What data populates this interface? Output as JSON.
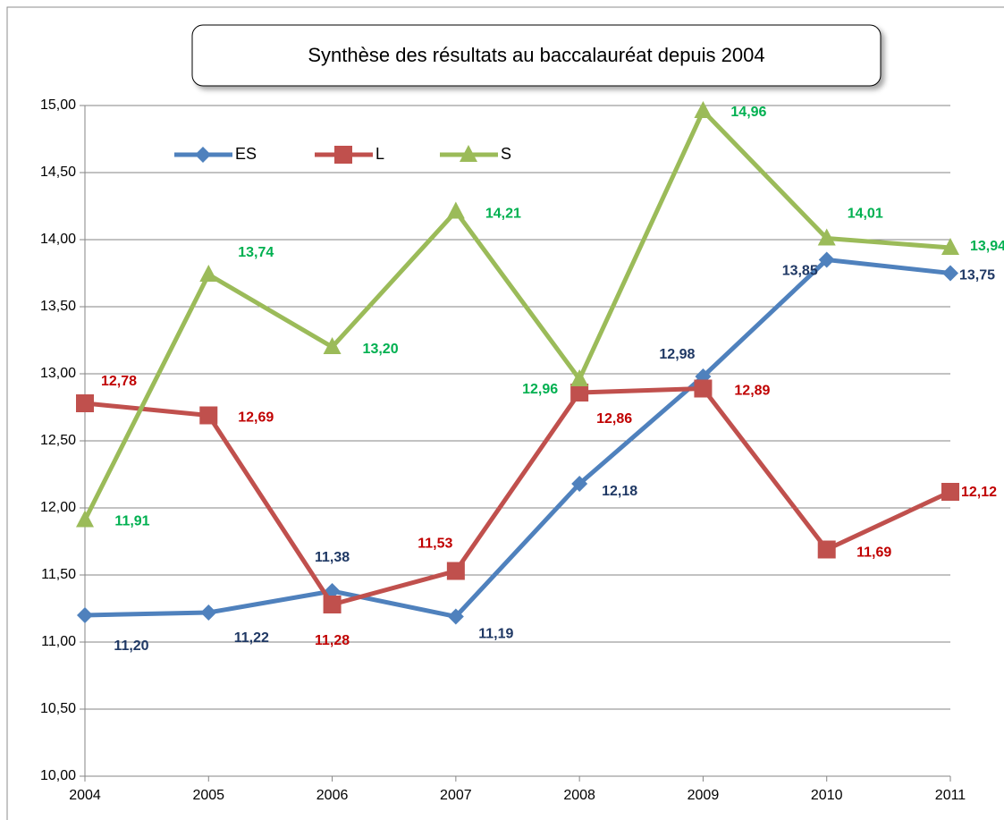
{
  "chart_data": {
    "type": "line",
    "title": "Synthèse des résultats au baccalauréat depuis 2004",
    "categories": [
      "2004",
      "2005",
      "2006",
      "2007",
      "2008",
      "2009",
      "2010",
      "2011"
    ],
    "series": [
      {
        "name": "ES",
        "color": "#4f81bd",
        "label_color": "#1f3864",
        "marker": "diamond",
        "values": [
          11.2,
          11.22,
          11.38,
          11.19,
          12.18,
          12.98,
          13.85,
          13.75
        ],
        "value_labels": [
          "11,20",
          "11,22",
          "11,38",
          "11,19",
          "12,18",
          "12,98",
          "13,85",
          "13,75"
        ]
      },
      {
        "name": "L",
        "color": "#c0504d",
        "label_color": "#c00000",
        "marker": "square",
        "values": [
          12.78,
          12.69,
          11.28,
          11.53,
          12.86,
          12.89,
          11.69,
          12.12
        ],
        "value_labels": [
          "12,78",
          "12,69",
          "11,28",
          "11,53",
          "12,86",
          "12,89",
          "11,69",
          "12,12"
        ]
      },
      {
        "name": "S",
        "color": "#9bbb59",
        "label_color": "#00b050",
        "marker": "triangle",
        "values": [
          11.91,
          13.74,
          13.2,
          14.21,
          12.96,
          14.96,
          14.01,
          13.94
        ],
        "value_labels": [
          "11,91",
          "13,74",
          "13,20",
          "14,21",
          "12,96",
          "14,96",
          "14,01",
          "13,94"
        ]
      }
    ],
    "ylim": [
      10,
      15
    ],
    "yticks": [
      {
        "value": 10,
        "label": "10,00"
      },
      {
        "value": 10.5,
        "label": "10,50"
      },
      {
        "value": 11,
        "label": "11,00"
      },
      {
        "value": 11.5,
        "label": "11,50"
      },
      {
        "value": 12,
        "label": "12,00"
      },
      {
        "value": 12.5,
        "label": "12,50"
      },
      {
        "value": 13,
        "label": "13,00"
      },
      {
        "value": 13.5,
        "label": "13,50"
      },
      {
        "value": 14,
        "label": "14,00"
      },
      {
        "value": 14.5,
        "label": "14,50"
      },
      {
        "value": 15,
        "label": "15,00"
      }
    ],
    "grid": true,
    "legend": "top-left"
  }
}
